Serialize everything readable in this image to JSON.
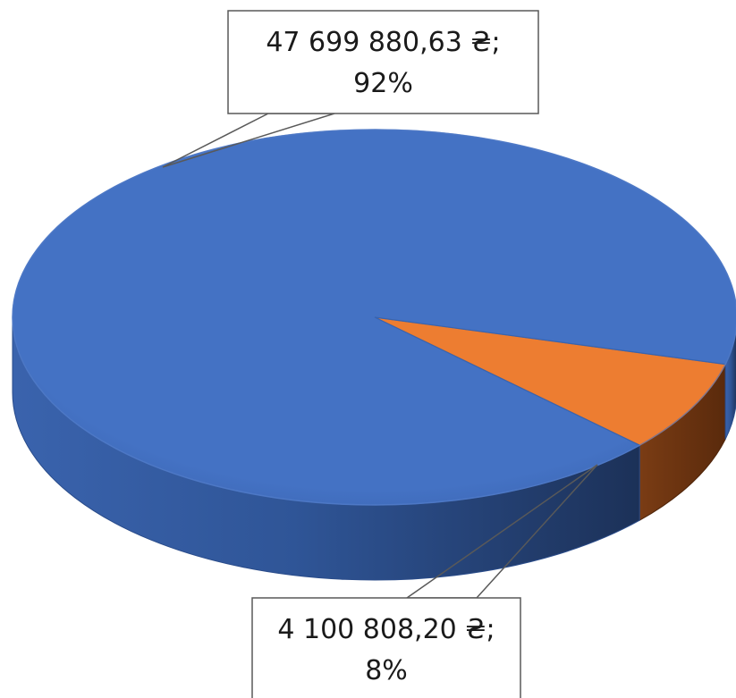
{
  "chart_data": {
    "type": "pie",
    "title": "",
    "style": "3d",
    "slices": [
      {
        "value": 47699880.63,
        "percent": 92,
        "label_value": "47 699 880,63 ₴;",
        "label_percent": "92%",
        "color": "#4472c4"
      },
      {
        "value": 4100808.2,
        "percent": 8,
        "label_value": "4 100 808,20 ₴;",
        "label_percent": "8%",
        "color": "#ed7d31"
      }
    ],
    "legend": "none"
  }
}
